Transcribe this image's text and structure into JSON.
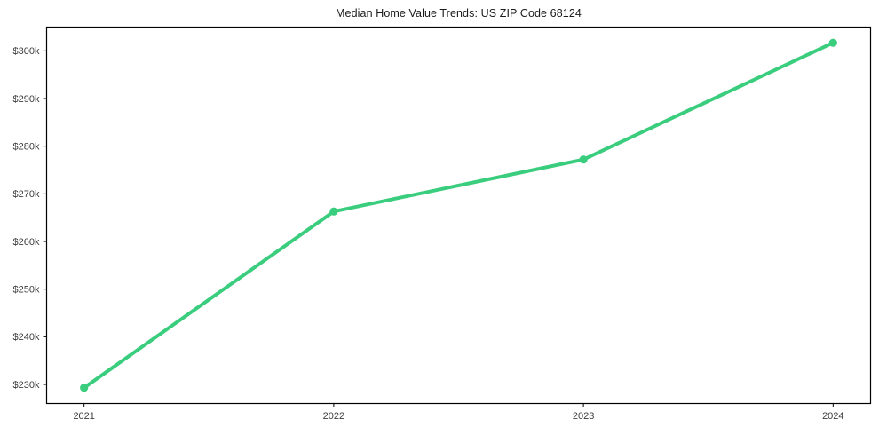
{
  "chart_data": {
    "type": "line",
    "title": "Median Home Value Trends: US ZIP Code 68124",
    "x": [
      2021,
      2022,
      2023,
      2024
    ],
    "xtick_labels": [
      "2021",
      "2022",
      "2023",
      "2024"
    ],
    "values": [
      229300,
      266300,
      277200,
      301700
    ],
    "yticks": [
      230000,
      240000,
      250000,
      260000,
      270000,
      280000,
      290000,
      300000
    ],
    "ytick_labels": [
      "$230k",
      "$240k",
      "$250k",
      "$260k",
      "$270k",
      "$280k",
      "$290k",
      "$300k"
    ],
    "xlim": [
      2020.85,
      2024.15
    ],
    "ylim": [
      226000,
      305000
    ],
    "grid": false,
    "legend": false,
    "line_color": "#3acd7e",
    "marker": "circle",
    "frame_color": "#000000"
  }
}
